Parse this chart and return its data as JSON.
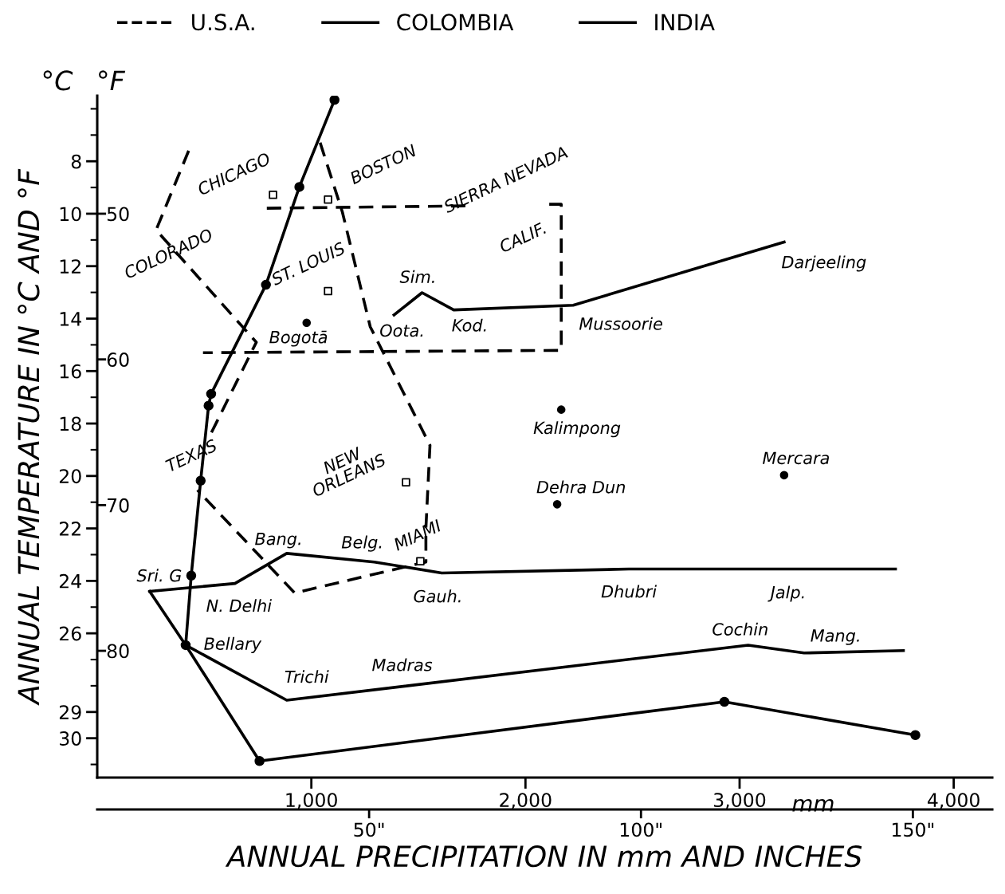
{
  "chart_data": {
    "type": "line",
    "xlabel": "mm",
    "x2label": "ANNUAL PRECIPITATION IN mm AND INCHES",
    "ylabel": "ANNUAL TEMPERATURE IN °C AND °F",
    "xlim": [
      0,
      4180
    ],
    "xticks": [
      {
        "value": 1000,
        "label": "1,000"
      },
      {
        "value": 2000,
        "label": "2,000"
      },
      {
        "value": 3000,
        "label": "3,000"
      },
      {
        "value": 4000,
        "label": "4,000"
      }
    ],
    "x2lim": [
      0,
      164.6
    ],
    "x2ticks": [
      {
        "value": 50,
        "label": "50\""
      },
      {
        "value": 100,
        "label": "100\""
      },
      {
        "value": 150,
        "label": "150\""
      }
    ],
    "ylim": [
      31.5,
      5.5
    ],
    "yticks": [
      8,
      10,
      12,
      14,
      16,
      18,
      20,
      22,
      24,
      26,
      29,
      30
    ],
    "y2lim": [
      88.7,
      41.9
    ],
    "y2ticks": [
      50,
      60,
      70,
      80
    ],
    "grid": false,
    "legend": "top left",
    "series": [
      {
        "name": "U.S.A.",
        "color": "#000000",
        "line_style": "dashed",
        "marker": "none",
        "x": [
          427,
          275,
          743,
          532,
          null,
          1041,
          1145,
          1275,
          1554,
          1535,
          1535,
          922,
          468,
          null,
          792,
          1740,
          null,
          2111,
          2167,
          2167,
          494
        ],
        "values": [
          7.6,
          10.62,
          14.9,
          18.37,
          null,
          7.29,
          9.94,
          14.31,
          18.83,
          21.99,
          23.28,
          24.46,
          20.54,
          null,
          9.79,
          9.7,
          null,
          9.64,
          9.64,
          15.21,
          15.3
        ]
      },
      {
        "name": "COLOMBIA",
        "color": "#000000",
        "line_style": "solid",
        "marker": "circle",
        "x": [
          1108,
          944,
          788,
          532,
          520,
          483,
          439,
          413,
          758,
          2929,
          3821
        ],
        "values": [
          5.66,
          8.98,
          12.71,
          16.87,
          17.32,
          20.18,
          23.8,
          26.45,
          30.87,
          28.61,
          29.88
        ]
      },
      {
        "name": "INDIA",
        "color": "#000000",
        "line_style": "solid",
        "marker": "none",
        "x": [
          1386,
          1517,
          1665,
          2223,
          3208,
          null,
          245,
          643,
          885,
          1294,
          1609,
          2483,
          3264,
          3728,
          null,
          245,
          413,
          885,
          3040,
          3301,
          3765
        ],
        "values": [
          13.86,
          13.01,
          13.67,
          13.49,
          11.08,
          null,
          24.4,
          24.1,
          22.95,
          23.28,
          23.7,
          23.55,
          23.55,
          23.55,
          null,
          24.4,
          26.45,
          28.55,
          26.45,
          26.75,
          26.66
        ]
      },
      {
        "type": "scatter",
        "color": "#000000",
        "marker": "square",
        "x": [
          821,
          1078,
          1078,
          1442,
          1509
        ],
        "values": [
          9.28,
          9.46,
          12.95,
          20.24,
          23.25
        ]
      },
      {
        "type": "scatter",
        "color": "#000000",
        "marker": "circle",
        "x": [
          978,
          2167,
          2148,
          3208
        ],
        "values": [
          14.16,
          17.47,
          21.08,
          19.97
        ]
      }
    ],
    "annotations": [
      "°C",
      "°F",
      {
        "text": "CHICAGO",
        "x": 821,
        "y": 9.28
      },
      {
        "text": "BOSTON",
        "x": 1078,
        "y": 9.46
      },
      {
        "text": "COLORADO",
        "x": 275,
        "y": 10.62
      },
      {
        "text": "SIERRA NEVADA",
        "x": 2111,
        "y": 9.64
      },
      {
        "text": "CALIF.",
        "x": 2111,
        "y": 9.64
      },
      {
        "text": "ST. LOUIS",
        "x": 1078,
        "y": 12.95
      },
      {
        "text": "Sim.",
        "x": 1517,
        "y": 13.01
      },
      {
        "text": "Darjeeling",
        "x": 3208,
        "y": 11.08
      },
      {
        "text": "Bogotā",
        "x": 978,
        "y": 14.16
      },
      {
        "text": "Oota.",
        "x": 1386,
        "y": 13.86
      },
      {
        "text": "Kod.",
        "x": 1665,
        "y": 13.67
      },
      {
        "text": "Mussoorie",
        "x": 2223,
        "y": 13.49
      },
      {
        "text": "Kalimpong",
        "x": 2167,
        "y": 17.47
      },
      {
        "text": "TEXAS",
        "x": 532,
        "y": 18.37
      },
      {
        "text": "NEW\nORLEANS",
        "x": 1442,
        "y": 20.24
      },
      {
        "text": "Mercara",
        "x": 3208,
        "y": 19.97
      },
      {
        "text": "Dehra Dun",
        "x": 2148,
        "y": 21.08
      },
      {
        "text": "MIAMI",
        "x": 1509,
        "y": 23.25
      },
      {
        "text": "Bang.",
        "x": 885,
        "y": 22.95
      },
      {
        "text": "Belg.",
        "x": 1294,
        "y": 23.28
      },
      {
        "text": "Sri. G",
        "x": 245,
        "y": 24.4
      },
      {
        "text": "N. Delhi",
        "x": 643,
        "y": 24.1
      },
      {
        "text": "Gauh.",
        "x": 1609,
        "y": 23.7
      },
      {
        "text": "Dhubri",
        "x": 2483,
        "y": 23.55
      },
      {
        "text": "Jalp.",
        "x": 3264,
        "y": 23.55
      },
      {
        "text": "Bellary",
        "x": 413,
        "y": 26.45
      },
      {
        "text": "Cochin",
        "x": 3040,
        "y": 26.45
      },
      {
        "text": "Mang.",
        "x": 3301,
        "y": 26.75
      },
      {
        "text": "Trichi",
        "x": 885,
        "y": 28.55
      },
      {
        "text": "Madras",
        "x": 1424,
        "y": 28.02
      }
    ]
  }
}
